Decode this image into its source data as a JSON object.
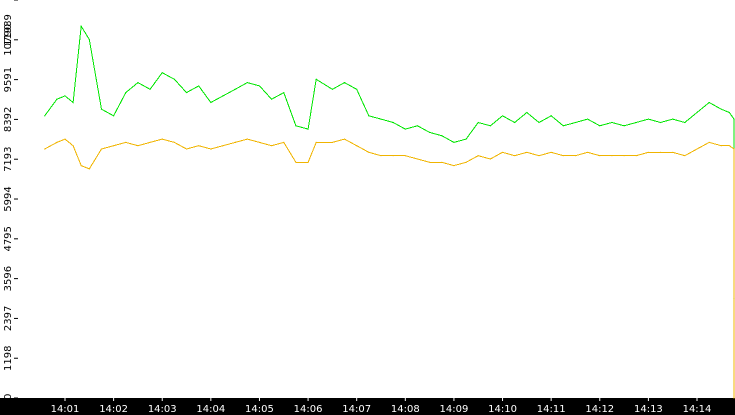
{
  "chart_data": {
    "type": "line",
    "title": "",
    "xlabel": "",
    "ylabel": "",
    "x_ticks": [
      "14:01",
      "14:02",
      "14:03",
      "14:04",
      "14:05",
      "14:06",
      "14:07",
      "14:08",
      "14:09",
      "14:10",
      "14:11",
      "14:12",
      "14:13",
      "14:14"
    ],
    "y_ticks": [
      "0",
      "1198",
      "2397",
      "3596",
      "4795",
      "5994",
      "7193",
      "8392",
      "9591",
      "10790",
      "11989"
    ],
    "ylim": [
      0,
      11989
    ],
    "grid": false,
    "legend": "none",
    "series": [
      {
        "color": "#00e600",
        "x": [
          "14:00:35",
          "14:00:50",
          "14:01:00",
          "14:01:10",
          "14:01:20",
          "14:01:30",
          "14:01:45",
          "14:02:00",
          "14:02:15",
          "14:02:30",
          "14:02:45",
          "14:03:00",
          "14:03:15",
          "14:03:30",
          "14:03:45",
          "14:04:00",
          "14:04:15",
          "14:04:30",
          "14:04:45",
          "14:05:00",
          "14:05:15",
          "14:05:30",
          "14:05:45",
          "14:06:00",
          "14:06:10",
          "14:06:30",
          "14:06:45",
          "14:07:00",
          "14:07:15",
          "14:07:30",
          "14:07:45",
          "14:08:00",
          "14:08:15",
          "14:08:30",
          "14:08:45",
          "14:09:00",
          "14:09:15",
          "14:09:30",
          "14:09:45",
          "14:10:00",
          "14:10:15",
          "14:10:30",
          "14:10:45",
          "14:11:00",
          "14:11:15",
          "14:11:30",
          "14:11:45",
          "14:12:00",
          "14:12:15",
          "14:12:30",
          "14:12:45",
          "14:13:00",
          "14:13:15",
          "14:13:30",
          "14:13:45",
          "14:14:00",
          "14:14:15",
          "14:14:30",
          "14:14:40",
          "14:14:50",
          "14:15:00"
        ],
        "values": [
          8500,
          9000,
          9100,
          8900,
          11200,
          10800,
          8700,
          8500,
          9200,
          9500,
          9300,
          9800,
          9600,
          9200,
          9400,
          8900,
          9100,
          9300,
          9500,
          9400,
          9000,
          9200,
          8200,
          8100,
          9600,
          9300,
          9500,
          9300,
          8500,
          8400,
          8300,
          8100,
          8200,
          8000,
          7900,
          7700,
          7800,
          8300,
          8200,
          8500,
          8300,
          8600,
          8300,
          8500,
          8200,
          8300,
          8400,
          8200,
          8300,
          8200,
          8300,
          8400,
          8300,
          8400,
          8300,
          8600,
          8900,
          8700,
          8600,
          8400,
          3000
        ]
      },
      {
        "color": "#f0b400",
        "x": [
          "14:00:35",
          "14:00:50",
          "14:01:00",
          "14:01:10",
          "14:01:20",
          "14:01:30",
          "14:01:45",
          "14:02:00",
          "14:02:15",
          "14:02:30",
          "14:02:45",
          "14:03:00",
          "14:03:15",
          "14:03:30",
          "14:03:45",
          "14:04:00",
          "14:04:15",
          "14:04:30",
          "14:04:45",
          "14:05:00",
          "14:05:15",
          "14:05:30",
          "14:05:45",
          "14:06:00",
          "14:06:10",
          "14:06:30",
          "14:06:45",
          "14:07:00",
          "14:07:15",
          "14:07:30",
          "14:07:45",
          "14:08:00",
          "14:08:15",
          "14:08:30",
          "14:08:45",
          "14:09:00",
          "14:09:15",
          "14:09:30",
          "14:09:45",
          "14:10:00",
          "14:10:15",
          "14:10:30",
          "14:10:45",
          "14:11:00",
          "14:11:15",
          "14:11:30",
          "14:11:45",
          "14:12:00",
          "14:12:15",
          "14:12:30",
          "14:12:45",
          "14:13:00",
          "14:13:15",
          "14:13:30",
          "14:13:45",
          "14:14:00",
          "14:14:15",
          "14:14:30",
          "14:14:40",
          "14:14:50",
          "14:15:00"
        ],
        "values": [
          7500,
          7700,
          7800,
          7600,
          7000,
          6900,
          7500,
          7600,
          7700,
          7600,
          7700,
          7800,
          7700,
          7500,
          7600,
          7500,
          7600,
          7700,
          7800,
          7700,
          7600,
          7700,
          7100,
          7100,
          7700,
          7700,
          7800,
          7600,
          7400,
          7300,
          7300,
          7300,
          7200,
          7100,
          7100,
          7000,
          7100,
          7300,
          7200,
          7400,
          7300,
          7400,
          7300,
          7400,
          7300,
          7300,
          7400,
          7300,
          7300,
          7300,
          7300,
          7400,
          7400,
          7400,
          7300,
          7500,
          7700,
          7600,
          7600,
          7500,
          0
        ]
      }
    ]
  }
}
